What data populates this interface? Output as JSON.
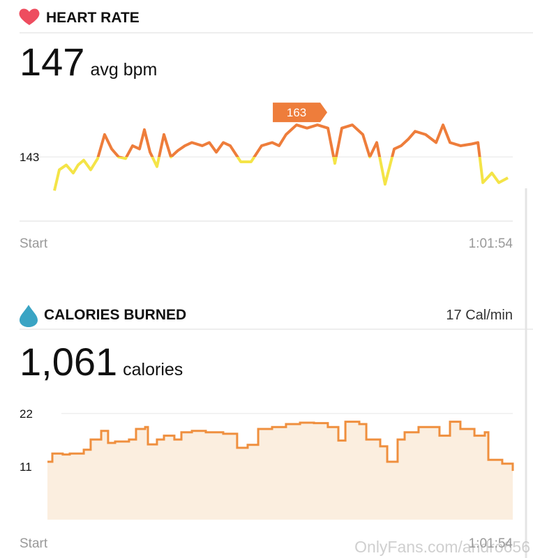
{
  "chart_data": [
    {
      "type": "line",
      "title": "HEART RATE",
      "headline": "147",
      "headline_unit": "avg bpm",
      "color_above": "#ee7d3b",
      "color_below": "#f4e447",
      "xlim": [
        0,
        3714
      ],
      "xticks": [
        {
          "value": 0,
          "label": "Start"
        },
        {
          "value": 3714,
          "label": "1:01:54"
        }
      ],
      "ylim": [
        103,
        180
      ],
      "yticks": [
        143
      ],
      "grid": true,
      "annotation": {
        "x": 1983,
        "value": 163
      },
      "x": [
        0,
        40,
        97,
        154,
        194,
        240,
        297,
        354,
        411,
        469,
        526,
        583,
        640,
        697,
        737,
        783,
        840,
        897,
        954,
        1011,
        1069,
        1126,
        1211,
        1269,
        1326,
        1383,
        1440,
        1526,
        1611,
        1697,
        1783,
        1840,
        1897,
        1983,
        2069,
        2154,
        2240,
        2297,
        2354,
        2440,
        2526,
        2583,
        2640,
        2708,
        2783,
        2840,
        2897,
        2954,
        3040,
        3126,
        3183,
        3240,
        3326,
        3411,
        3469,
        3509,
        3583,
        3640,
        3714
      ],
      "values": [
        122,
        135,
        138,
        133,
        138,
        141,
        135,
        142,
        157,
        148,
        143,
        142,
        150,
        148,
        160,
        146,
        137,
        157,
        143,
        147,
        150,
        152,
        150,
        152,
        146,
        152,
        150,
        140,
        140,
        150,
        152,
        150,
        157,
        163,
        161,
        163,
        161,
        139,
        161,
        163,
        157,
        143,
        152,
        126,
        148,
        150,
        154,
        159,
        157,
        152,
        163,
        152,
        150,
        151,
        152,
        127,
        133,
        127,
        130
      ]
    },
    {
      "type": "step-area",
      "title": "CALORIES BURNED",
      "rate": "17 Cal/min",
      "headline": "1,061",
      "headline_unit": "calories",
      "color": "#ef8f3e",
      "fill": "#fbeedf",
      "xlim": [
        0,
        3714
      ],
      "xticks": [
        {
          "value": 0,
          "label": "Start"
        },
        {
          "value": 3714,
          "label": "1:01:54"
        }
      ],
      "ylim": [
        0,
        24
      ],
      "yticks": [
        11,
        22
      ],
      "grid": true,
      "x": [
        0,
        39,
        122,
        178,
        290,
        345,
        429,
        484,
        540,
        651,
        707,
        780,
        802,
        874,
        930,
        1013,
        1069,
        1153,
        1264,
        1403,
        1514,
        1598,
        1682,
        1793,
        1904,
        2016,
        2127,
        2238,
        2322,
        2378,
        2489,
        2545,
        2656,
        2712,
        2795,
        2851,
        2962,
        3129,
        3213,
        3296,
        3408,
        3491,
        3519,
        3630,
        3714
      ],
      "values": [
        12.0,
        13.7,
        13.5,
        13.7,
        14.5,
        16.6,
        18.4,
        15.9,
        16.2,
        16.6,
        18.8,
        19.2,
        15.6,
        16.6,
        17.4,
        16.6,
        18.1,
        18.4,
        18.1,
        17.8,
        14.9,
        15.5,
        18.8,
        19.2,
        19.8,
        20.1,
        20.0,
        19.2,
        16.4,
        20.3,
        19.8,
        16.6,
        15.2,
        12.0,
        16.6,
        18.1,
        19.2,
        17.4,
        20.3,
        18.8,
        17.4,
        18.1,
        12.4,
        11.6,
        10.1
      ]
    }
  ],
  "watermark": "OnlyFans.com/andro656"
}
